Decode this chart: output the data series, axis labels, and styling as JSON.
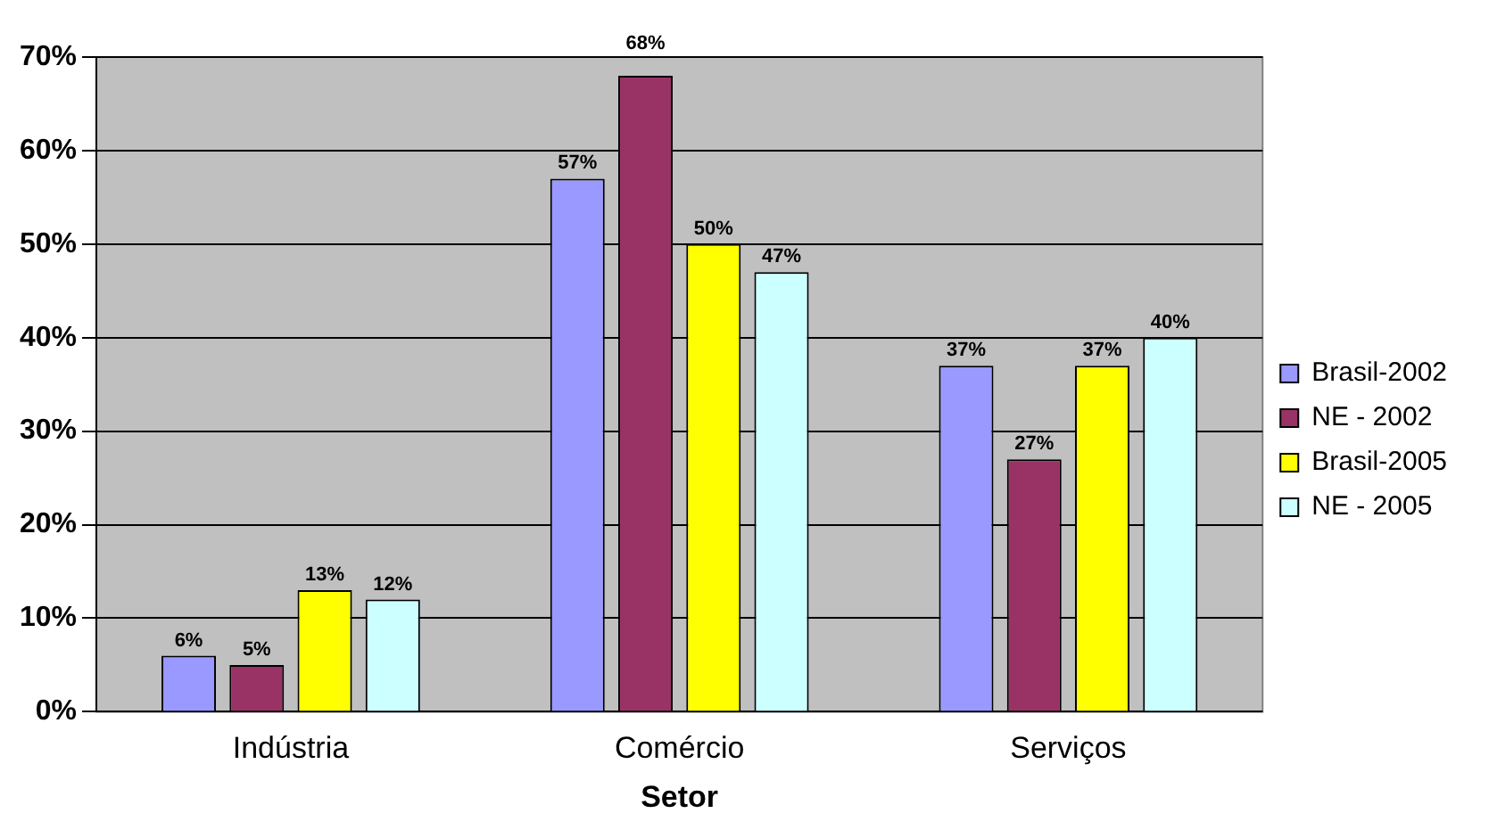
{
  "chart_data": {
    "type": "bar",
    "xlabel": "Setor",
    "categories": [
      "Indústria",
      "Comércio",
      "Serviços"
    ],
    "series": [
      {
        "name": "Brasil-2002",
        "color": "#9999ff",
        "values": [
          6,
          57,
          37
        ],
        "value_labels": [
          "6%",
          "57%",
          "37%"
        ]
      },
      {
        "name": "NE - 2002",
        "color": "#993366",
        "values": [
          5,
          68,
          27
        ],
        "value_labels": [
          "5%",
          "68%",
          "27%"
        ]
      },
      {
        "name": "Brasil-2005",
        "color": "#ffff00",
        "values": [
          13,
          50,
          37
        ],
        "value_labels": [
          "13%",
          "50%",
          "37%"
        ]
      },
      {
        "name": "NE - 2005",
        "color": "#ccffff",
        "values": [
          12,
          47,
          40
        ],
        "value_labels": [
          "12%",
          "47%",
          "40%"
        ]
      }
    ],
    "ylim": [
      0,
      70
    ],
    "yticks": [
      {
        "value": 0,
        "label": "0%"
      },
      {
        "value": 10,
        "label": "10%"
      },
      {
        "value": 20,
        "label": "20%"
      },
      {
        "value": 30,
        "label": "30%"
      },
      {
        "value": 40,
        "label": "40%"
      },
      {
        "value": 50,
        "label": "50%"
      },
      {
        "value": 60,
        "label": "60%"
      },
      {
        "value": 70,
        "label": "70%"
      }
    ],
    "grid": "y",
    "legend": "right"
  }
}
